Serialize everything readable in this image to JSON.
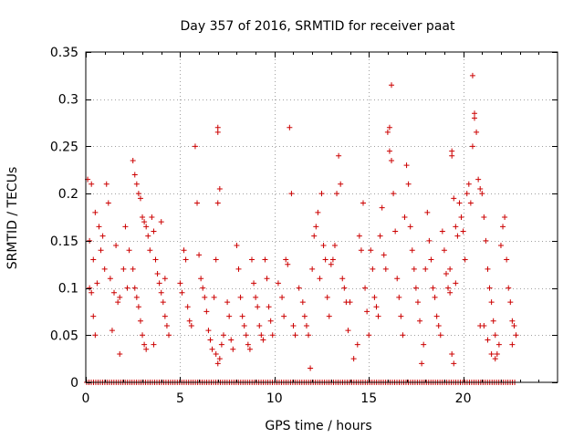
{
  "chart_data": {
    "type": "scatter",
    "title": "Day 357 of 2016, SRMTID for receiver paat",
    "xlabel": "GPS time / hours",
    "ylabel": "SRMTID / TECUs",
    "xlim": [
      0,
      25
    ],
    "ylim": [
      0,
      0.35
    ],
    "xticks": [
      0,
      5,
      10,
      15,
      20
    ],
    "xtick_labels": [
      "0",
      "5",
      "10",
      "15",
      "20"
    ],
    "yticks": [
      0,
      0.05,
      0.1,
      0.15,
      0.2,
      0.25,
      0.3,
      0.35
    ],
    "ytick_labels": [
      "0",
      "0.05",
      "0.1",
      "0.15",
      "0.2",
      "0.25",
      "0.3",
      "0.35"
    ],
    "grid": true,
    "marker": "+",
    "series": [
      {
        "name": "SRMTID",
        "color": "#cc0000",
        "baseline": {
          "y": 0,
          "x_start": 0.05,
          "x_end": 22.8,
          "step": 0.12
        },
        "points": [
          [
            0.1,
            0.215
          ],
          [
            0.3,
            0.21
          ],
          [
            0.5,
            0.18
          ],
          [
            0.7,
            0.165
          ],
          [
            0.9,
            0.155
          ],
          [
            1.1,
            0.21
          ],
          [
            1.3,
            0.11
          ],
          [
            1.4,
            0.055
          ],
          [
            1.6,
            0.145
          ],
          [
            1.8,
            0.09
          ],
          [
            2.0,
            0.12
          ],
          [
            2.1,
            0.165
          ],
          [
            0.2,
            0.1
          ],
          [
            0.3,
            0.095
          ],
          [
            0.4,
            0.07
          ],
          [
            0.5,
            0.05
          ],
          [
            0.2,
            0.15
          ],
          [
            0.4,
            0.13
          ],
          [
            0.6,
            0.105
          ],
          [
            0.8,
            0.14
          ],
          [
            1.0,
            0.12
          ],
          [
            1.2,
            0.19
          ],
          [
            1.5,
            0.095
          ],
          [
            1.7,
            0.085
          ],
          [
            1.8,
            0.03
          ],
          [
            2.2,
            0.1
          ],
          [
            2.3,
            0.14
          ],
          [
            2.5,
            0.235
          ],
          [
            2.6,
            0.22
          ],
          [
            2.7,
            0.21
          ],
          [
            2.8,
            0.2
          ],
          [
            2.9,
            0.195
          ],
          [
            3.0,
            0.175
          ],
          [
            3.1,
            0.17
          ],
          [
            3.2,
            0.165
          ],
          [
            3.3,
            0.155
          ],
          [
            3.4,
            0.14
          ],
          [
            2.5,
            0.12
          ],
          [
            2.6,
            0.1
          ],
          [
            2.7,
            0.09
          ],
          [
            2.8,
            0.08
          ],
          [
            2.9,
            0.065
          ],
          [
            3.0,
            0.05
          ],
          [
            3.1,
            0.04
          ],
          [
            3.2,
            0.035
          ],
          [
            3.5,
            0.175
          ],
          [
            3.6,
            0.16
          ],
          [
            3.7,
            0.13
          ],
          [
            3.8,
            0.115
          ],
          [
            3.9,
            0.105
          ],
          [
            4.0,
            0.095
          ],
          [
            4.1,
            0.085
          ],
          [
            4.2,
            0.07
          ],
          [
            4.3,
            0.06
          ],
          [
            4.4,
            0.05
          ],
          [
            3.6,
            0.04
          ],
          [
            4.0,
            0.17
          ],
          [
            4.2,
            0.11
          ],
          [
            5.0,
            0.105
          ],
          [
            5.1,
            0.095
          ],
          [
            5.2,
            0.14
          ],
          [
            5.3,
            0.13
          ],
          [
            5.4,
            0.08
          ],
          [
            5.5,
            0.065
          ],
          [
            5.6,
            0.06
          ],
          [
            5.8,
            0.25
          ],
          [
            5.9,
            0.19
          ],
          [
            6.0,
            0.135
          ],
          [
            6.1,
            0.11
          ],
          [
            6.2,
            0.1
          ],
          [
            6.3,
            0.09
          ],
          [
            6.4,
            0.075
          ],
          [
            6.5,
            0.055
          ],
          [
            6.6,
            0.045
          ],
          [
            6.7,
            0.035
          ],
          [
            6.8,
            0.09
          ],
          [
            6.9,
            0.13
          ],
          [
            7.0,
            0.27
          ],
          [
            7.0,
            0.265
          ],
          [
            7.1,
            0.205
          ],
          [
            7.0,
            0.19
          ],
          [
            6.9,
            0.03
          ],
          [
            7.0,
            0.02
          ],
          [
            7.1,
            0.025
          ],
          [
            7.2,
            0.04
          ],
          [
            7.3,
            0.05
          ],
          [
            7.5,
            0.085
          ],
          [
            7.6,
            0.07
          ],
          [
            7.7,
            0.045
          ],
          [
            7.8,
            0.035
          ],
          [
            8.0,
            0.145
          ],
          [
            8.1,
            0.12
          ],
          [
            8.2,
            0.09
          ],
          [
            8.3,
            0.07
          ],
          [
            8.4,
            0.06
          ],
          [
            8.5,
            0.05
          ],
          [
            8.6,
            0.04
          ],
          [
            8.7,
            0.035
          ],
          [
            8.8,
            0.13
          ],
          [
            8.9,
            0.105
          ],
          [
            9.0,
            0.09
          ],
          [
            9.1,
            0.08
          ],
          [
            9.2,
            0.06
          ],
          [
            9.3,
            0.05
          ],
          [
            9.4,
            0.045
          ],
          [
            9.5,
            0.13
          ],
          [
            9.6,
            0.11
          ],
          [
            9.7,
            0.08
          ],
          [
            9.8,
            0.065
          ],
          [
            9.9,
            0.05
          ],
          [
            10.2,
            0.105
          ],
          [
            10.4,
            0.09
          ],
          [
            10.5,
            0.07
          ],
          [
            10.6,
            0.13
          ],
          [
            10.7,
            0.125
          ],
          [
            10.8,
            0.27
          ],
          [
            10.9,
            0.2
          ],
          [
            11.0,
            0.06
          ],
          [
            11.1,
            0.05
          ],
          [
            11.3,
            0.1
          ],
          [
            11.5,
            0.085
          ],
          [
            11.6,
            0.07
          ],
          [
            11.7,
            0.06
          ],
          [
            11.8,
            0.05
          ],
          [
            11.9,
            0.015
          ],
          [
            12.0,
            0.12
          ],
          [
            12.1,
            0.155
          ],
          [
            12.2,
            0.165
          ],
          [
            12.3,
            0.18
          ],
          [
            12.4,
            0.11
          ],
          [
            12.5,
            0.2
          ],
          [
            12.6,
            0.145
          ],
          [
            12.7,
            0.13
          ],
          [
            12.8,
            0.09
          ],
          [
            12.9,
            0.07
          ],
          [
            13.0,
            0.125
          ],
          [
            13.1,
            0.13
          ],
          [
            13.2,
            0.145
          ],
          [
            13.3,
            0.2
          ],
          [
            13.4,
            0.24
          ],
          [
            13.5,
            0.21
          ],
          [
            13.6,
            0.11
          ],
          [
            13.7,
            0.1
          ],
          [
            13.8,
            0.085
          ],
          [
            13.9,
            0.055
          ],
          [
            14.0,
            0.085
          ],
          [
            14.2,
            0.025
          ],
          [
            14.4,
            0.04
          ],
          [
            14.5,
            0.155
          ],
          [
            14.6,
            0.14
          ],
          [
            14.7,
            0.19
          ],
          [
            14.8,
            0.1
          ],
          [
            14.9,
            0.075
          ],
          [
            15.0,
            0.05
          ],
          [
            15.1,
            0.14
          ],
          [
            15.2,
            0.12
          ],
          [
            15.3,
            0.09
          ],
          [
            15.4,
            0.08
          ],
          [
            15.5,
            0.07
          ],
          [
            15.6,
            0.155
          ],
          [
            15.7,
            0.185
          ],
          [
            15.8,
            0.135
          ],
          [
            15.9,
            0.12
          ],
          [
            16.0,
            0.265
          ],
          [
            16.1,
            0.27
          ],
          [
            16.1,
            0.245
          ],
          [
            16.2,
            0.235
          ],
          [
            16.2,
            0.315
          ],
          [
            16.3,
            0.2
          ],
          [
            16.4,
            0.16
          ],
          [
            16.5,
            0.11
          ],
          [
            16.6,
            0.09
          ],
          [
            16.7,
            0.07
          ],
          [
            16.8,
            0.05
          ],
          [
            16.9,
            0.175
          ],
          [
            17.0,
            0.23
          ],
          [
            17.1,
            0.21
          ],
          [
            17.2,
            0.165
          ],
          [
            17.3,
            0.14
          ],
          [
            17.4,
            0.12
          ],
          [
            17.5,
            0.1
          ],
          [
            17.6,
            0.085
          ],
          [
            17.7,
            0.065
          ],
          [
            17.8,
            0.02
          ],
          [
            17.9,
            0.04
          ],
          [
            18.0,
            0.12
          ],
          [
            18.1,
            0.18
          ],
          [
            18.2,
            0.15
          ],
          [
            18.3,
            0.13
          ],
          [
            18.4,
            0.1
          ],
          [
            18.5,
            0.09
          ],
          [
            18.6,
            0.07
          ],
          [
            18.7,
            0.06
          ],
          [
            18.8,
            0.05
          ],
          [
            18.9,
            0.16
          ],
          [
            19.0,
            0.14
          ],
          [
            19.1,
            0.115
          ],
          [
            19.2,
            0.1
          ],
          [
            19.3,
            0.095
          ],
          [
            19.4,
            0.245
          ],
          [
            19.4,
            0.24
          ],
          [
            19.5,
            0.195
          ],
          [
            19.6,
            0.165
          ],
          [
            19.7,
            0.155
          ],
          [
            19.8,
            0.19
          ],
          [
            19.9,
            0.175
          ],
          [
            19.4,
            0.03
          ],
          [
            19.5,
            0.02
          ],
          [
            19.3,
            0.12
          ],
          [
            19.6,
            0.105
          ],
          [
            20.0,
            0.16
          ],
          [
            20.1,
            0.13
          ],
          [
            20.2,
            0.2
          ],
          [
            20.3,
            0.21
          ],
          [
            20.4,
            0.19
          ],
          [
            20.5,
            0.325
          ],
          [
            20.6,
            0.285
          ],
          [
            20.6,
            0.28
          ],
          [
            20.7,
            0.265
          ],
          [
            20.5,
            0.25
          ],
          [
            20.8,
            0.215
          ],
          [
            20.9,
            0.205
          ],
          [
            21.0,
            0.2
          ],
          [
            21.1,
            0.175
          ],
          [
            21.2,
            0.15
          ],
          [
            21.3,
            0.12
          ],
          [
            21.4,
            0.1
          ],
          [
            21.5,
            0.085
          ],
          [
            21.6,
            0.065
          ],
          [
            21.7,
            0.05
          ],
          [
            21.8,
            0.03
          ],
          [
            21.9,
            0.04
          ],
          [
            22.0,
            0.145
          ],
          [
            22.1,
            0.165
          ],
          [
            22.2,
            0.175
          ],
          [
            22.3,
            0.13
          ],
          [
            22.4,
            0.1
          ],
          [
            22.5,
            0.085
          ],
          [
            22.6,
            0.065
          ],
          [
            22.7,
            0.06
          ],
          [
            22.8,
            0.05
          ],
          [
            22.6,
            0.04
          ],
          [
            20.9,
            0.06
          ],
          [
            21.1,
            0.06
          ],
          [
            21.3,
            0.045
          ],
          [
            21.5,
            0.03
          ],
          [
            21.7,
            0.025
          ]
        ]
      }
    ]
  }
}
